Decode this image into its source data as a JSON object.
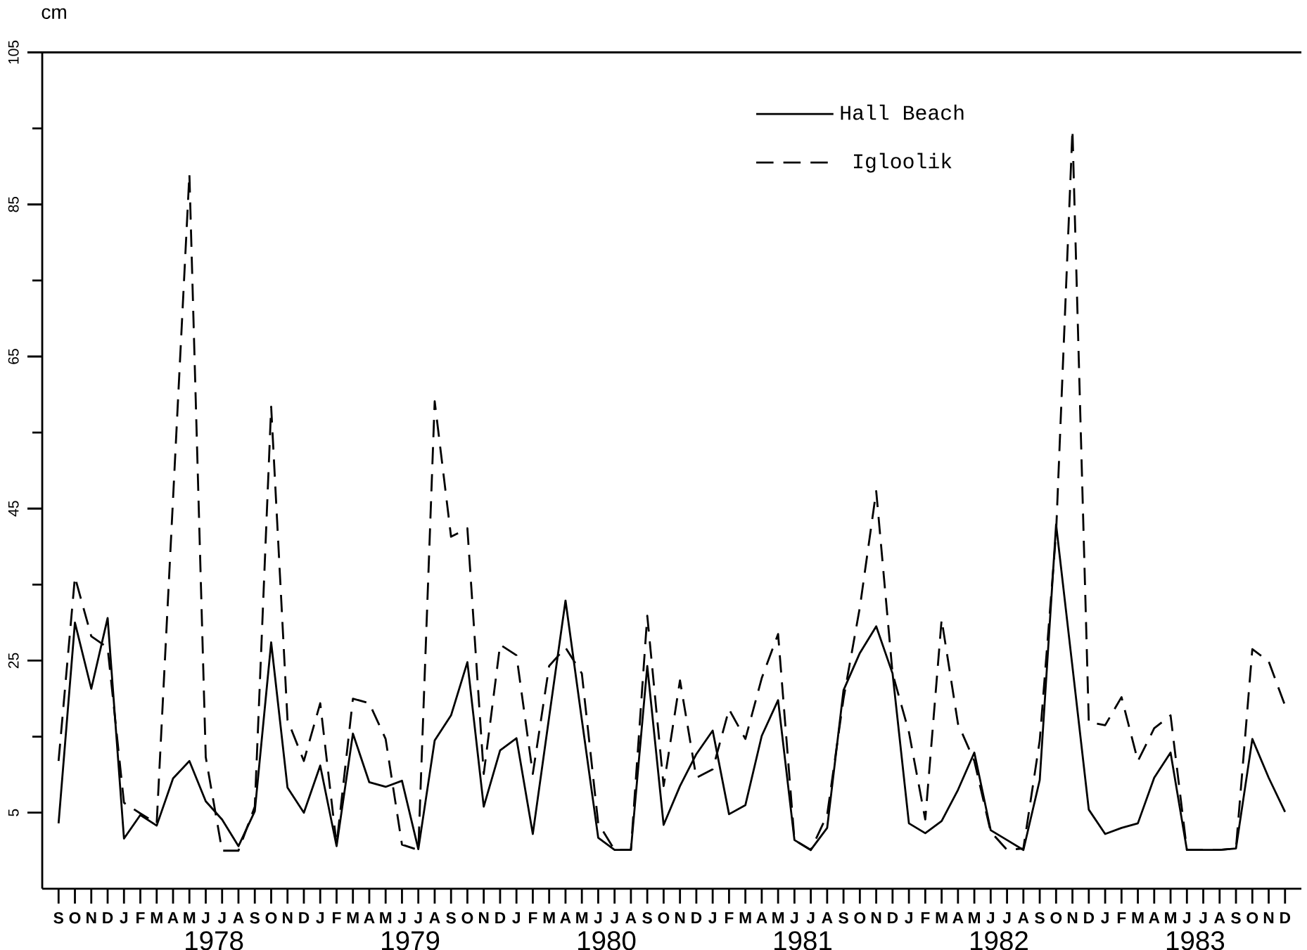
{
  "chart_data": {
    "type": "line",
    "ylabel": "cm",
    "categories": [
      "S",
      "O",
      "N",
      "D",
      "J",
      "F",
      "M",
      "A",
      "M",
      "J",
      "J",
      "A",
      "S",
      "O",
      "N",
      "D",
      "J",
      "F",
      "M",
      "A",
      "M",
      "J",
      "J",
      "A",
      "S",
      "O",
      "N",
      "D",
      "J",
      "F",
      "M",
      "A",
      "M",
      "J",
      "J",
      "A",
      "S",
      "O",
      "N",
      "D",
      "J",
      "F",
      "M",
      "A",
      "M",
      "J",
      "J",
      "A",
      "S",
      "O",
      "N",
      "D",
      "J",
      "F",
      "M",
      "A",
      "M",
      "J",
      "J",
      "A",
      "S",
      "O",
      "N",
      "D",
      "J",
      "F",
      "M",
      "A",
      "M",
      "J",
      "J",
      "A",
      "S",
      "O",
      "N",
      "D"
    ],
    "series": [
      {
        "name": "Hall Beach",
        "color": "#000000",
        "line_style": "solid",
        "values": [
          3.6,
          30,
          21.3,
          30.6,
          1.6,
          4.7,
          3.3,
          9.5,
          11.8,
          6.5,
          4.1,
          0.6,
          5.2,
          27.4,
          8.3,
          5,
          11.2,
          0.6,
          15.4,
          9,
          8.4,
          9.2,
          0.2,
          14.5,
          17.8,
          24.8,
          5.8,
          13.2,
          14.8,
          2.2,
          17.6,
          32.9,
          17.2,
          1.7,
          0.1,
          0.1,
          24.3,
          3.4,
          8.5,
          12.7,
          15.8,
          4.8,
          6,
          15.1,
          19.8,
          1.4,
          0.1,
          3,
          21.1,
          26,
          29.5,
          23.3,
          3.6,
          2.3,
          3.9,
          8,
          12.9,
          2.7,
          1.4,
          0.1,
          9.3,
          42.9,
          24.2,
          5.4,
          2.2,
          3,
          3.6,
          9.6,
          12.9,
          0.1,
          0.1,
          0.1,
          0.3,
          14.7,
          9.6,
          5.1
        ]
      },
      {
        "name": "Igloolik",
        "color": "#000000",
        "line_style": "dashed",
        "values": [
          11.8,
          36,
          28.2,
          26.7,
          6.3,
          4.9,
          3.6,
          46.3,
          89,
          12.3,
          0,
          0,
          5.8,
          58.4,
          17.2,
          11.8,
          19.4,
          0.8,
          20,
          19.4,
          14.7,
          0.8,
          0.1,
          59.1,
          41.3,
          42.4,
          10.1,
          27.1,
          25.7,
          10.1,
          24.3,
          26.7,
          23.3,
          3.6,
          0.1,
          0.1,
          30.9,
          8.5,
          22.4,
          9.6,
          10.7,
          18.6,
          14.7,
          22.7,
          28.5,
          1.4,
          0.1,
          4.7,
          20,
          32,
          47.3,
          23.3,
          15.6,
          4.1,
          30.4,
          16.7,
          11.8,
          2.5,
          0.1,
          0.3,
          14.5,
          41.8,
          94.8,
          16.9,
          16.5,
          20.2,
          11.8,
          16.1,
          17.8,
          0.1,
          0.1,
          0.1,
          0.3,
          26.5,
          24.9,
          19.1
        ]
      }
    ],
    "ylim": [
      -5,
      105
    ],
    "yticks": [
      5,
      25,
      45,
      65,
      85,
      105
    ],
    "legend": "top right",
    "marker": "none",
    "annotations": [
      "1978",
      "1979",
      "1980",
      "1981",
      "1982",
      "1983"
    ]
  }
}
